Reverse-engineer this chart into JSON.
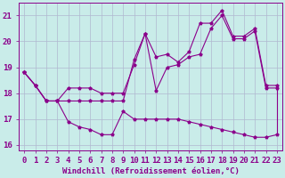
{
  "xlabel": "Windchill (Refroidissement éolien,°C)",
  "xlim": [
    -0.5,
    23.5
  ],
  "ylim": [
    15.8,
    21.5
  ],
  "yticks": [
    16,
    17,
    18,
    19,
    20,
    21
  ],
  "xticks": [
    0,
    1,
    2,
    3,
    4,
    5,
    6,
    7,
    8,
    9,
    10,
    11,
    12,
    13,
    14,
    15,
    16,
    17,
    18,
    19,
    20,
    21,
    22,
    23
  ],
  "background_color": "#c9ece9",
  "line_color": "#8b008b",
  "grid_color": "#b0b8d0",
  "line1_x": [
    0,
    1,
    2,
    3,
    4,
    5,
    6,
    7,
    8,
    9,
    10,
    11,
    12,
    13,
    14,
    15,
    16,
    17,
    18,
    19,
    20,
    21,
    22,
    23
  ],
  "line1_y": [
    18.8,
    18.3,
    17.7,
    17.7,
    17.7,
    17.7,
    17.7,
    17.7,
    17.7,
    17.7,
    19.3,
    20.3,
    19.4,
    19.5,
    19.2,
    19.6,
    20.7,
    20.7,
    21.2,
    20.2,
    20.2,
    20.5,
    18.3,
    18.3
  ],
  "line2_x": [
    0,
    1,
    2,
    3,
    4,
    5,
    6,
    7,
    8,
    9,
    10,
    11,
    12,
    13,
    14,
    15,
    16,
    17,
    18,
    19,
    20,
    21,
    22,
    23
  ],
  "line2_y": [
    18.8,
    18.3,
    17.7,
    17.7,
    18.2,
    18.2,
    18.2,
    18.0,
    18.0,
    18.0,
    19.1,
    20.3,
    18.1,
    19.0,
    19.1,
    19.4,
    19.5,
    20.5,
    21.0,
    20.1,
    20.1,
    20.4,
    18.2,
    18.2
  ],
  "line3_x": [
    0,
    1,
    2,
    3,
    4,
    5,
    6,
    7,
    8,
    9,
    10,
    11,
    12,
    13,
    14,
    15,
    16,
    17,
    18,
    19,
    20,
    21,
    22,
    23
  ],
  "line3_y": [
    18.8,
    18.3,
    17.7,
    17.7,
    16.9,
    16.7,
    16.6,
    16.4,
    16.4,
    17.3,
    17.0,
    17.0,
    17.0,
    17.0,
    17.0,
    16.9,
    16.8,
    16.7,
    16.6,
    16.5,
    16.4,
    16.3,
    16.3,
    16.4
  ],
  "font_color": "#8b008b",
  "font_size": 6.5
}
